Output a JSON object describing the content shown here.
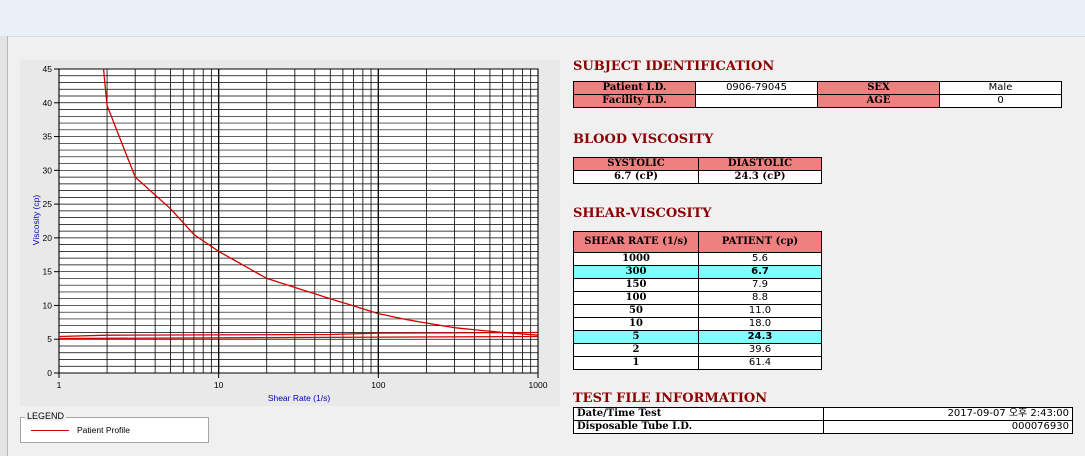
{
  "subject": {
    "title": "SUBJECT IDENTIFICATION",
    "patient_id_label": "Patient I.D.",
    "patient_id": "0906-79045",
    "sex_label": "SEX",
    "sex": "Male",
    "facility_label": "Facility I.D.",
    "facility_id": "",
    "age_label": "AGE",
    "age": "0"
  },
  "blood": {
    "title": "BLOOD VISCOSITY",
    "systolic_label": "SYSTOLIC",
    "diastolic_label": "DIASTOLIC",
    "systolic": "6.7 (cP)",
    "diastolic": "24.3 (cP)"
  },
  "shear": {
    "title": "SHEAR-VISCOSITY",
    "col_rate": "SHEAR RATE (1/s)",
    "col_patient": "PATIENT (cp)",
    "rows": [
      {
        "rate": "1000",
        "value": "5.6",
        "highlight": false
      },
      {
        "rate": "300",
        "value": "6.7",
        "highlight": true
      },
      {
        "rate": "150",
        "value": "7.9",
        "highlight": false
      },
      {
        "rate": "100",
        "value": "8.8",
        "highlight": false
      },
      {
        "rate": "50",
        "value": "11.0",
        "highlight": false
      },
      {
        "rate": "10",
        "value": "18.0",
        "highlight": false
      },
      {
        "rate": "5",
        "value": "24.3",
        "highlight": true
      },
      {
        "rate": "2",
        "value": "39.6",
        "highlight": false
      },
      {
        "rate": "1",
        "value": "61.4",
        "highlight": false
      }
    ]
  },
  "fileinfo": {
    "title": "TEST FILE INFORMATION",
    "datetime_label": "Date/Time Test",
    "datetime": "2017-09-07  오후 2:43:00",
    "tube_label": "Disposable Tube I.D.",
    "tube": "000076930"
  },
  "legend": {
    "title": "LEGEND",
    "entry": "Patient Profile",
    "color": "#d00000"
  },
  "chart_data": {
    "type": "line",
    "xlabel": "Shear Rate (1/s)",
    "ylabel": "Viscosity (cp)",
    "xscale": "log",
    "xlim": [
      1,
      1000
    ],
    "ylim": [
      0,
      45
    ],
    "xticks": [
      "1",
      "10",
      "100",
      "1000"
    ],
    "yticks": [
      "0",
      "5",
      "10",
      "15",
      "20",
      "25",
      "30",
      "35",
      "40",
      "45"
    ],
    "grid": true,
    "series": [
      {
        "name": "Patient Profile",
        "color": "#d00000",
        "x": [
          1.9,
          2,
          3,
          5,
          7,
          10,
          20,
          50,
          100,
          150,
          300,
          600,
          1000
        ],
        "y": [
          45,
          39.6,
          29,
          24.3,
          20.5,
          18.0,
          14.0,
          11.0,
          8.8,
          7.9,
          6.7,
          6.0,
          5.6
        ]
      },
      {
        "name": "",
        "color": "#d00000",
        "x": [
          1,
          2,
          50,
          100,
          1000
        ],
        "y": [
          5.4,
          5.6,
          5.7,
          5.9,
          6.0
        ]
      },
      {
        "name": "",
        "color": "#d00000",
        "x": [
          1,
          1000
        ],
        "y": [
          5.1,
          5.4
        ]
      }
    ]
  }
}
